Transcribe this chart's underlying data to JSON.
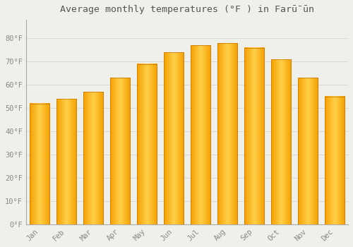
{
  "title": "Average monthly temperatures (°F ) in Farū̄ūn",
  "months": [
    "Jan",
    "Feb",
    "Mar",
    "Apr",
    "May",
    "Jun",
    "Jul",
    "Aug",
    "Sep",
    "Oct",
    "Nov",
    "Dec"
  ],
  "values": [
    52,
    54,
    57,
    63,
    69,
    74,
    77,
    78,
    76,
    71,
    63,
    55
  ],
  "bar_color_center": "#FFD04A",
  "bar_color_edge": "#F5A000",
  "background_color": "#f0f0eb",
  "grid_color": "#d8d8d8",
  "ylim": [
    0,
    88
  ],
  "yticks": [
    0,
    10,
    20,
    30,
    40,
    50,
    60,
    70,
    80
  ],
  "ytick_labels": [
    "0°F",
    "10°F",
    "20°F",
    "30°F",
    "40°F",
    "50°F",
    "60°F",
    "70°F",
    "80°F"
  ],
  "title_fontsize": 9.5,
  "tick_fontsize": 7.5,
  "bar_width": 0.75
}
